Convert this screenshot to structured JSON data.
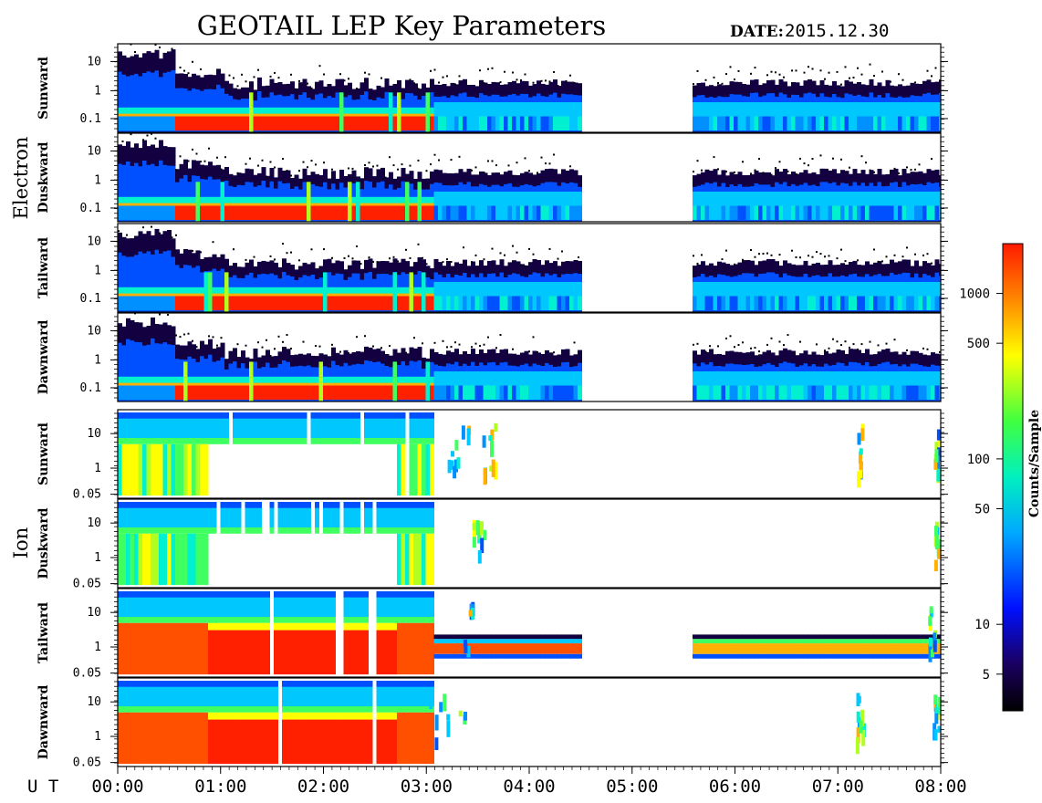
{
  "title": "GEOTAIL LEP Key Parameters",
  "date_label": "DATE:",
  "date_value": "2015.12.30",
  "chart_data": {
    "type": "heatmap",
    "x_axis": {
      "label": "U T",
      "range": [
        "00:00",
        "08:00"
      ],
      "ticks": [
        "00:00",
        "01:00",
        "02:00",
        "03:00",
        "04:00",
        "05:00",
        "06:00",
        "07:00",
        "08:00"
      ]
    },
    "colorbar": {
      "label": "Counts/Sample",
      "scale": "log",
      "range": [
        3,
        2000
      ],
      "ticks": [
        5,
        10,
        50,
        100,
        500,
        1000
      ]
    },
    "data_gap": [
      "04:30",
      "05:35"
    ],
    "groups": [
      {
        "name": "Electron",
        "y_scale": "log",
        "y_range": [
          0.05,
          40
        ],
        "y_ticks": [
          "10",
          "1",
          "0.1"
        ],
        "panels": [
          {
            "name": "Sunward"
          },
          {
            "name": "Duskward"
          },
          {
            "name": "Tailward"
          },
          {
            "name": "Dawnward"
          }
        ]
      },
      {
        "name": "Ion",
        "y_scale": "log",
        "y_range": [
          0.04,
          40
        ],
        "y_ticks": [
          "10",
          "1",
          "0.05"
        ],
        "panels": [
          {
            "name": "Sunward"
          },
          {
            "name": "Duskward"
          },
          {
            "name": "Tailward"
          },
          {
            "name": "Dawnward"
          }
        ]
      }
    ]
  }
}
